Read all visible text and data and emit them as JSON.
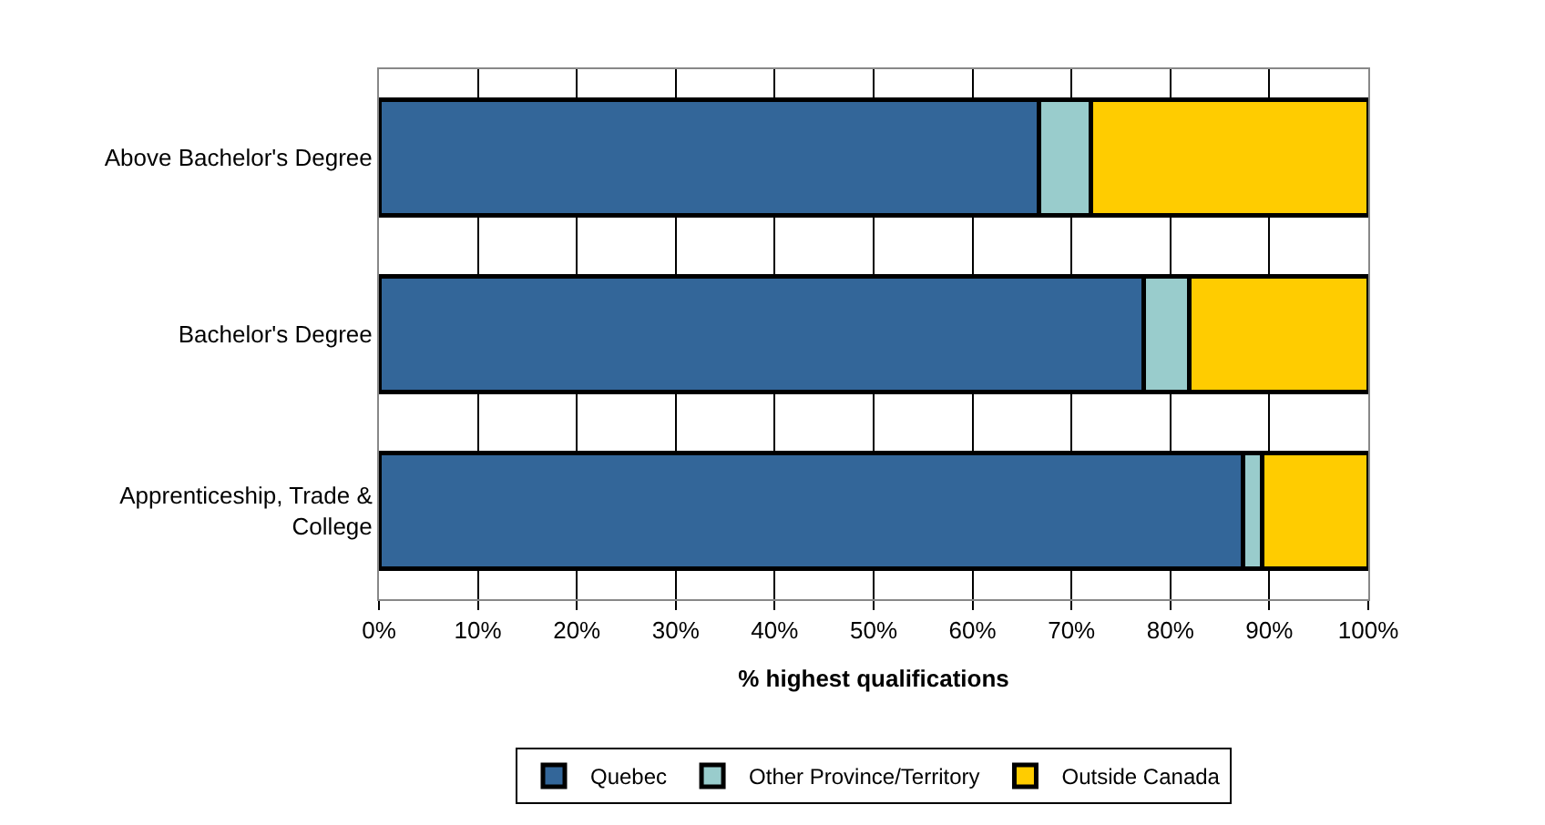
{
  "chart_data": {
    "type": "bar",
    "orientation": "horizontal",
    "stacked": true,
    "categories": [
      "Above Bachelor's Degree",
      "Bachelor's Degree",
      "Apprenticeship, Trade & College"
    ],
    "series": [
      {
        "name": "Quebec",
        "color": "#336699",
        "values": [
          66.7,
          77.3,
          87.3
        ]
      },
      {
        "name": "Other Province/Territory",
        "color": "#99cccc",
        "values": [
          5.3,
          4.6,
          2.0
        ]
      },
      {
        "name": "Outside Canada",
        "color": "#ffcc00",
        "values": [
          28.0,
          18.1,
          10.7
        ]
      }
    ],
    "xlabel": "% highest qualifications",
    "xlim": [
      0,
      100
    ],
    "xticks": [
      {
        "value": 0,
        "label": "0%"
      },
      {
        "value": 10,
        "label": "10%"
      },
      {
        "value": 20,
        "label": "20%"
      },
      {
        "value": 30,
        "label": "30%"
      },
      {
        "value": 40,
        "label": "40%"
      },
      {
        "value": 50,
        "label": "50%"
      },
      {
        "value": 60,
        "label": "60%"
      },
      {
        "value": 70,
        "label": "70%"
      },
      {
        "value": 80,
        "label": "80%"
      },
      {
        "value": 90,
        "label": "90%"
      },
      {
        "value": 100,
        "label": "100%"
      }
    ],
    "grid": "x",
    "legend": "bottom"
  }
}
